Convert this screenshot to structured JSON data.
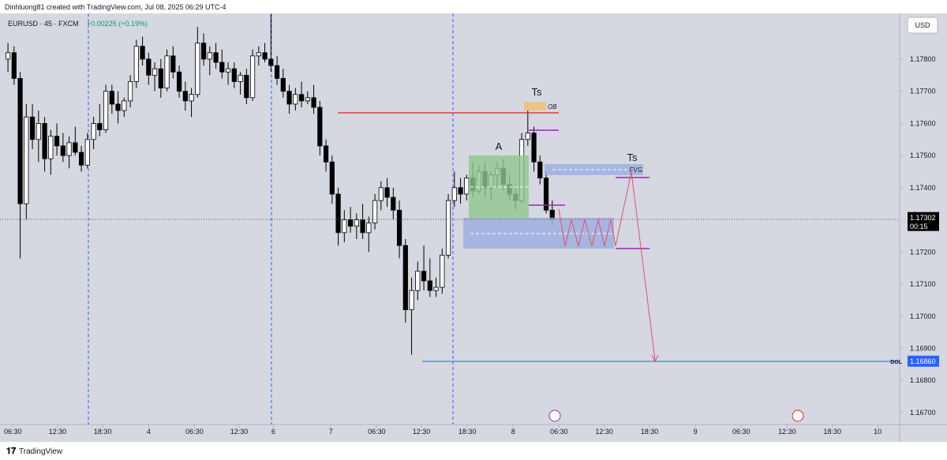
{
  "chart_data": {
    "type": "candlestick",
    "header": "Dinhluong81 created with TradingView.com, Jul 08, 2025 06:29 UTC-4",
    "symbol": "EURUSD · 45 · FXCM",
    "change": "+0.00225 (+0.19%)",
    "currency": "USD",
    "brand": "TradingView",
    "annotations": {
      "ts_top": "Ts",
      "ts_right": "Ts",
      "range": "A",
      "ob": "OB",
      "fvg": "FVG",
      "dol": "DOL"
    },
    "last_price": {
      "value": 1.17302,
      "label": "1.17302",
      "timer": "00:15"
    },
    "dol_price": {
      "value": 1.1686,
      "label": "1.16860"
    },
    "up_color": "#ffffff",
    "down_color": "#000000",
    "x": [
      0,
      1,
      2,
      3,
      4,
      5,
      6,
      7,
      8,
      9,
      10,
      11,
      12,
      13,
      14,
      15,
      16,
      17,
      18,
      19,
      20,
      21,
      22,
      23,
      24,
      25,
      26,
      27,
      28,
      29,
      30,
      31,
      32,
      33,
      34,
      35,
      36,
      37,
      38,
      39,
      40,
      41,
      42,
      43,
      44,
      45,
      46,
      47,
      48,
      49,
      50,
      51,
      52,
      53,
      54,
      55,
      56,
      57,
      58,
      59,
      60,
      61,
      62,
      63,
      64,
      65,
      66,
      67,
      68,
      69,
      70,
      71,
      72,
      73,
      74,
      75,
      76,
      77,
      78,
      79,
      80,
      81,
      82,
      83,
      84,
      85,
      86,
      87,
      88,
      89
    ],
    "candles": [
      [
        1.178,
        1.1785,
        1.1776,
        1.1782
      ],
      [
        1.1782,
        1.1784,
        1.1772,
        1.1774
      ],
      [
        1.1774,
        1.1776,
        1.1718,
        1.1735
      ],
      [
        1.1735,
        1.1766,
        1.173,
        1.1762
      ],
      [
        1.1762,
        1.1766,
        1.1752,
        1.1755
      ],
      [
        1.1755,
        1.1764,
        1.1748,
        1.176
      ],
      [
        1.176,
        1.1762,
        1.1745,
        1.1749
      ],
      [
        1.1749,
        1.1758,
        1.1744,
        1.1756
      ],
      [
        1.1756,
        1.176,
        1.175,
        1.1753
      ],
      [
        1.1753,
        1.1757,
        1.1748,
        1.175
      ],
      [
        1.175,
        1.1756,
        1.1746,
        1.1754
      ],
      [
        1.1754,
        1.1759,
        1.175,
        1.1751
      ],
      [
        1.1751,
        1.1753,
        1.1745,
        1.1747
      ],
      [
        1.1747,
        1.1757,
        1.1746,
        1.1755
      ],
      [
        1.1755,
        1.1762,
        1.1752,
        1.176
      ],
      [
        1.176,
        1.1766,
        1.1756,
        1.1758
      ],
      [
        1.1758,
        1.1772,
        1.1757,
        1.177
      ],
      [
        1.177,
        1.1772,
        1.1763,
        1.1766
      ],
      [
        1.1766,
        1.177,
        1.176,
        1.1764
      ],
      [
        1.1764,
        1.1768,
        1.1762,
        1.1767
      ],
      [
        1.1767,
        1.1775,
        1.1765,
        1.1773
      ],
      [
        1.1773,
        1.1786,
        1.1771,
        1.1784
      ],
      [
        1.1784,
        1.1787,
        1.1778,
        1.178
      ],
      [
        1.178,
        1.1782,
        1.1772,
        1.1775
      ],
      [
        1.1775,
        1.1779,
        1.177,
        1.1777
      ],
      [
        1.1777,
        1.178,
        1.1768,
        1.1771
      ],
      [
        1.1771,
        1.1783,
        1.177,
        1.1781
      ],
      [
        1.1781,
        1.1784,
        1.1774,
        1.1776
      ],
      [
        1.1776,
        1.1778,
        1.1768,
        1.177
      ],
      [
        1.177,
        1.1773,
        1.1764,
        1.1767
      ],
      [
        1.1767,
        1.1771,
        1.1762,
        1.1769
      ],
      [
        1.1769,
        1.179,
        1.1768,
        1.1785
      ],
      [
        1.1785,
        1.1788,
        1.1778,
        1.178
      ],
      [
        1.178,
        1.1784,
        1.1775,
        1.1782
      ],
      [
        1.1782,
        1.1785,
        1.1777,
        1.1779
      ],
      [
        1.1779,
        1.1783,
        1.1774,
        1.1776
      ],
      [
        1.1776,
        1.1779,
        1.1772,
        1.1777
      ],
      [
        1.1777,
        1.1779,
        1.1771,
        1.1773
      ],
      [
        1.1773,
        1.1776,
        1.1769,
        1.1775
      ],
      [
        1.1775,
        1.1777,
        1.1766,
        1.1768
      ],
      [
        1.1768,
        1.1783,
        1.1767,
        1.1781
      ],
      [
        1.1781,
        1.1784,
        1.1778,
        1.1782
      ],
      [
        1.1782,
        1.1785,
        1.1779,
        1.178
      ],
      [
        1.178,
        1.1794,
        1.1776,
        1.1778
      ],
      [
        1.1778,
        1.1781,
        1.1772,
        1.1774
      ],
      [
        1.1774,
        1.1777,
        1.1768,
        1.177
      ],
      [
        1.177,
        1.1772,
        1.1763,
        1.1766
      ],
      [
        1.1766,
        1.1771,
        1.1764,
        1.1769
      ],
      [
        1.1769,
        1.1773,
        1.1765,
        1.1767
      ],
      [
        1.1767,
        1.177,
        1.1766,
        1.1768
      ],
      [
        1.1768,
        1.1772,
        1.1763,
        1.1765
      ],
      [
        1.1765,
        1.1767,
        1.175,
        1.1753
      ],
      [
        1.1753,
        1.1755,
        1.1745,
        1.1748
      ],
      [
        1.1748,
        1.175,
        1.1735,
        1.1738
      ],
      [
        1.1738,
        1.174,
        1.1722,
        1.1726
      ],
      [
        1.1726,
        1.1733,
        1.1723,
        1.173
      ],
      [
        1.173,
        1.1734,
        1.1726,
        1.1728
      ],
      [
        1.1728,
        1.1732,
        1.1724,
        1.173
      ],
      [
        1.173,
        1.1735,
        1.1724,
        1.1726
      ],
      [
        1.1726,
        1.1731,
        1.172,
        1.1729
      ],
      [
        1.1729,
        1.1738,
        1.1727,
        1.1736
      ],
      [
        1.1736,
        1.1742,
        1.1733,
        1.174
      ],
      [
        1.174,
        1.1743,
        1.1734,
        1.1737
      ],
      [
        1.1737,
        1.174,
        1.173,
        1.1733
      ],
      [
        1.1733,
        1.1736,
        1.1718,
        1.1722
      ],
      [
        1.1722,
        1.1724,
        1.1698,
        1.1702
      ],
      [
        1.1702,
        1.1712,
        1.1688,
        1.1708
      ],
      [
        1.1708,
        1.1717,
        1.1705,
        1.1714
      ],
      [
        1.1714,
        1.1722,
        1.1708,
        1.1711
      ],
      [
        1.1711,
        1.1718,
        1.1706,
        1.1708
      ],
      [
        1.1708,
        1.1712,
        1.1706,
        1.1709
      ],
      [
        1.1709,
        1.1721,
        1.1707,
        1.1719
      ],
      [
        1.1719,
        1.1738,
        1.1718,
        1.1736
      ],
      [
        1.1736,
        1.1745,
        1.1734,
        1.174
      ],
      [
        1.174,
        1.1743,
        1.1735,
        1.1738
      ],
      [
        1.1738,
        1.1744,
        1.1736,
        1.1743
      ],
      [
        1.1743,
        1.1748,
        1.1737,
        1.1739
      ],
      [
        1.1739,
        1.1747,
        1.1738,
        1.1745
      ],
      [
        1.1745,
        1.1748,
        1.1737,
        1.174
      ],
      [
        1.174,
        1.1745,
        1.1736,
        1.1744
      ],
      [
        1.1744,
        1.1748,
        1.174,
        1.1746
      ],
      [
        1.1746,
        1.1749,
        1.1739,
        1.1741
      ],
      [
        1.1741,
        1.1744,
        1.1736,
        1.1738
      ],
      [
        1.1738,
        1.1741,
        1.1733,
        1.1736
      ],
      [
        1.1736,
        1.1757,
        1.1735,
        1.1755
      ],
      [
        1.1755,
        1.1764,
        1.1753,
        1.1757
      ],
      [
        1.1757,
        1.1759,
        1.1745,
        1.1748
      ],
      [
        1.1748,
        1.175,
        1.1741,
        1.1743
      ],
      [
        1.1743,
        1.1745,
        1.1732,
        1.1733
      ],
      [
        1.1733,
        1.1736,
        1.1728,
        1.173
      ]
    ],
    "xlim": [
      -1.3,
      145.8
    ],
    "xticks": [
      {
        "value": 0.8,
        "label": "06:30"
      },
      {
        "value": 8.1,
        "label": "12:30"
      },
      {
        "value": 15.5,
        "label": "18:30"
      },
      {
        "value": 23,
        "label": "4"
      },
      {
        "value": 30.5,
        "label": "06:30"
      },
      {
        "value": 37.8,
        "label": "12:30"
      },
      {
        "value": 43.4,
        "label": "6"
      },
      {
        "value": 52.8,
        "label": "7"
      },
      {
        "value": 60.3,
        "label": "06:30"
      },
      {
        "value": 67.6,
        "label": "12:30"
      },
      {
        "value": 75.1,
        "label": "18:30"
      },
      {
        "value": 82.6,
        "label": "8"
      },
      {
        "value": 90.1,
        "label": "06:30"
      },
      {
        "value": 97.5,
        "label": "12:30"
      },
      {
        "value": 104.9,
        "label": "18:30"
      },
      {
        "value": 112.4,
        "label": "9"
      },
      {
        "value": 119.9,
        "label": "06:30"
      },
      {
        "value": 127.4,
        "label": "12:30"
      },
      {
        "value": 134.8,
        "label": "18:30"
      },
      {
        "value": 142.2,
        "label": "10"
      }
    ],
    "ylim": [
      1.16663,
      1.17984
    ],
    "yticks": [
      {
        "value": 1.178,
        "label": "1.17800"
      },
      {
        "value": 1.177,
        "label": "1.17700"
      },
      {
        "value": 1.176,
        "label": "1.17600"
      },
      {
        "value": 1.175,
        "label": "1.17500"
      },
      {
        "value": 1.174,
        "label": "1.17400"
      },
      {
        "value": 1.172,
        "label": "1.17200"
      },
      {
        "value": 1.171,
        "label": "1.17100"
      },
      {
        "value": 1.17,
        "label": "1.17000"
      },
      {
        "value": 1.169,
        "label": "1.16900"
      },
      {
        "value": 1.168,
        "label": "1.16800"
      },
      {
        "value": 1.167,
        "label": "1.16700"
      }
    ]
  }
}
